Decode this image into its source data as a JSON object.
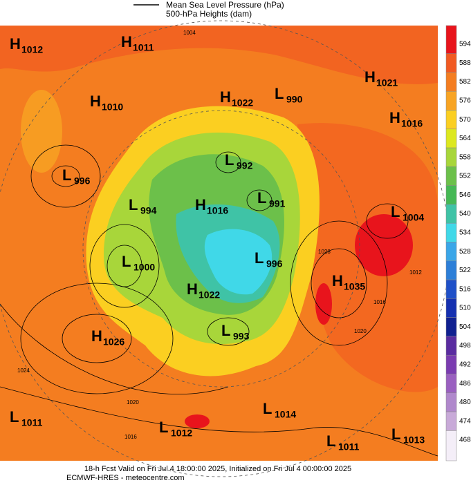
{
  "header": {
    "line_label": "Mean Sea Level Pressure (hPa)",
    "fill_label": "500-hPa Heights (dam)"
  },
  "centers": [
    {
      "kind": "H",
      "value": 1012
    },
    {
      "kind": "H",
      "value": 1011
    },
    {
      "kind": "H",
      "value": 1021
    },
    {
      "kind": "L",
      "value": 990
    },
    {
      "kind": "H",
      "value": 1022
    },
    {
      "kind": "H",
      "value": 1010
    },
    {
      "kind": "H",
      "value": 1016
    },
    {
      "kind": "L",
      "value": 992
    },
    {
      "kind": "L",
      "value": 996
    },
    {
      "kind": "L",
      "value": 994
    },
    {
      "kind": "H",
      "value": 1016
    },
    {
      "kind": "L",
      "value": 991
    },
    {
      "kind": "L",
      "value": 1004
    },
    {
      "kind": "L",
      "value": 1000
    },
    {
      "kind": "L",
      "value": 996
    },
    {
      "kind": "H",
      "value": 1035
    },
    {
      "kind": "H",
      "value": 1022
    },
    {
      "kind": "L",
      "value": 993
    },
    {
      "kind": "H",
      "value": 1026
    },
    {
      "kind": "L",
      "value": 1011
    },
    {
      "kind": "L",
      "value": 1014
    },
    {
      "kind": "L",
      "value": 1012
    },
    {
      "kind": "L",
      "value": 1011
    },
    {
      "kind": "L",
      "value": 1013
    }
  ],
  "contour_labels": [
    1004,
    1024,
    1020,
    1016,
    1028,
    1020,
    1016,
    1012
  ],
  "colorbar": {
    "ticks": [
      594,
      588,
      582,
      576,
      570,
      564,
      558,
      552,
      546,
      540,
      534,
      528,
      522,
      516,
      510,
      504,
      498,
      492,
      486,
      480,
      474,
      468
    ],
    "colors": [
      "#e8141c",
      "#f15a22",
      "#f47d20",
      "#f8a423",
      "#fbcf21",
      "#dde81f",
      "#a8d63a",
      "#6cc04a",
      "#45b855",
      "#3fc3a6",
      "#40d8e8",
      "#3aa6e8",
      "#2d7fd8",
      "#1f50c8",
      "#1530b0",
      "#102090",
      "#5a2ca0",
      "#7a3cb0",
      "#9a60c0",
      "#b088cc",
      "#c8aad8",
      "#f4eef8"
    ]
  },
  "footer": {
    "line1": "18-h Fcst Valid on Fri Jul  4 18:00:00 2025, Initialized on Fri Jul  4 00:00:00 2025",
    "line2": "ECMWF-HRES - meteocentre.com"
  }
}
